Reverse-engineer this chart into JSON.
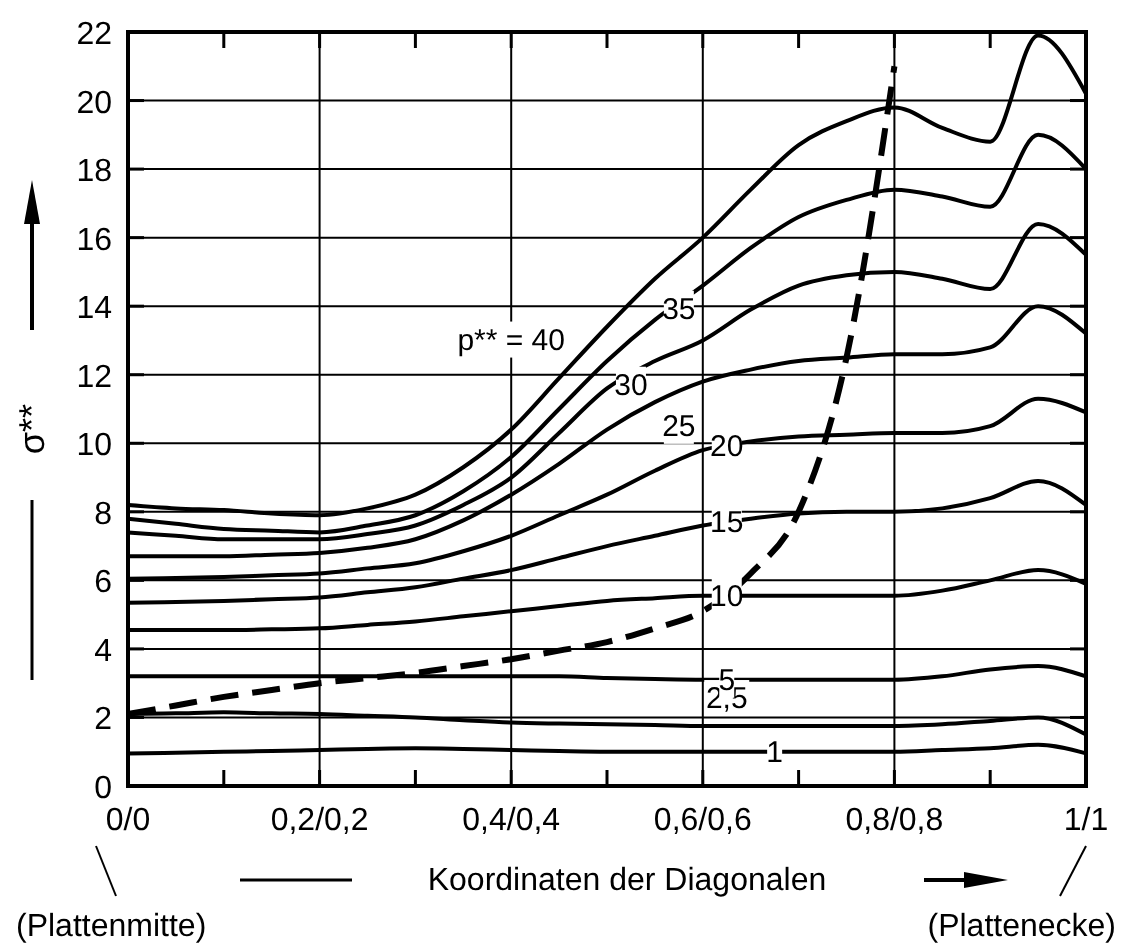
{
  "chart_data": {
    "type": "line",
    "xlabel": "Koordinaten der Diagonalen",
    "ylabel": "σ**",
    "categories": [
      "0/0",
      null,
      null,
      null,
      "0,2/0,2",
      null,
      null,
      null,
      "0,4/0,4",
      null,
      null,
      null,
      "0,6/0,6",
      null,
      null,
      null,
      "0,8/0,8",
      null,
      null,
      null,
      "1/1"
    ],
    "series": [
      {
        "name": "1",
        "color": "#000000",
        "values": [
          0.95,
          0.97,
          1.0,
          1.02,
          1.05,
          1.08,
          1.1,
          1.08,
          1.05,
          1.02,
          1.0,
          1.0,
          1.0,
          1.0,
          1.0,
          1.0,
          1.0,
          1.05,
          1.1,
          1.2,
          0.95
        ]
      },
      {
        "name": "2,5",
        "color": "#000000",
        "values": [
          2.1,
          2.12,
          2.15,
          2.12,
          2.1,
          2.05,
          2.0,
          1.92,
          1.85,
          1.82,
          1.8,
          1.78,
          1.75,
          1.75,
          1.75,
          1.75,
          1.75,
          1.8,
          1.9,
          2.0,
          1.5
        ]
      },
      {
        "name": "5",
        "color": "#000000",
        "values": [
          3.2,
          3.2,
          3.2,
          3.2,
          3.2,
          3.2,
          3.2,
          3.2,
          3.2,
          3.2,
          3.15,
          3.12,
          3.1,
          3.1,
          3.1,
          3.1,
          3.1,
          3.2,
          3.4,
          3.5,
          3.2
        ]
      },
      {
        "name": "10",
        "color": "#000000",
        "values": [
          4.55,
          4.55,
          4.55,
          4.57,
          4.6,
          4.7,
          4.8,
          4.95,
          5.1,
          5.25,
          5.4,
          5.48,
          5.55,
          5.55,
          5.55,
          5.55,
          5.55,
          5.7,
          6.0,
          6.3,
          5.9
        ]
      },
      {
        "name": "15",
        "color": "#000000",
        "values": [
          5.35,
          5.37,
          5.4,
          5.45,
          5.5,
          5.65,
          5.8,
          6.05,
          6.3,
          6.65,
          7.0,
          7.3,
          7.6,
          7.8,
          7.95,
          8.0,
          8.0,
          8.1,
          8.4,
          8.9,
          8.2
        ]
      },
      {
        "name": "20",
        "color": "#000000",
        "values": [
          6.05,
          6.07,
          6.1,
          6.15,
          6.2,
          6.35,
          6.5,
          6.85,
          7.3,
          7.9,
          8.5,
          9.2,
          9.8,
          10.05,
          10.2,
          10.25,
          10.3,
          10.3,
          10.5,
          11.3,
          10.9
        ]
      },
      {
        "name": "25",
        "color": "#000000",
        "values": [
          6.7,
          6.7,
          6.7,
          6.75,
          6.8,
          6.95,
          7.2,
          7.75,
          8.5,
          9.4,
          10.4,
          11.2,
          11.8,
          12.15,
          12.4,
          12.5,
          12.6,
          12.6,
          12.8,
          14.0,
          13.2
        ]
      },
      {
        "name": "30",
        "color": "#000000",
        "values": [
          7.4,
          7.3,
          7.2,
          7.2,
          7.2,
          7.35,
          7.6,
          8.2,
          9.0,
          10.3,
          11.6,
          12.4,
          13.0,
          13.9,
          14.6,
          14.9,
          15.0,
          14.8,
          14.5,
          16.4,
          15.5
        ]
      },
      {
        "name": "35",
        "color": "#000000",
        "values": [
          7.8,
          7.65,
          7.5,
          7.45,
          7.4,
          7.6,
          7.9,
          8.6,
          9.6,
          11.0,
          12.4,
          13.6,
          14.6,
          15.7,
          16.6,
          17.1,
          17.4,
          17.2,
          16.9,
          19.0,
          18.0
        ]
      },
      {
        "name": "p** = 40",
        "color": "#000000",
        "values": [
          8.2,
          8.1,
          8.05,
          7.95,
          7.9,
          8.1,
          8.5,
          9.3,
          10.4,
          11.9,
          13.4,
          14.8,
          16.0,
          17.4,
          18.7,
          19.4,
          19.8,
          19.2,
          18.8,
          21.9,
          20.2
        ]
      },
      {
        "color": "#000000",
        "line_style": "dashed",
        "values": [
          2.1,
          2.35,
          2.6,
          2.8,
          3.0,
          3.15,
          3.3,
          3.5,
          3.7,
          3.95,
          4.2,
          4.6,
          5.1,
          6.2,
          8.0,
          12.5,
          21.0,
          null,
          null,
          null,
          null
        ]
      }
    ],
    "ylim": [
      0,
      22
    ],
    "yticks": [
      0,
      2,
      4,
      6,
      8,
      10,
      12,
      14,
      16,
      18,
      20,
      22
    ],
    "grid": true,
    "line_style": "solid",
    "annotations": [
      "(Plattenmitte)",
      "(Plattenecke)"
    ]
  }
}
